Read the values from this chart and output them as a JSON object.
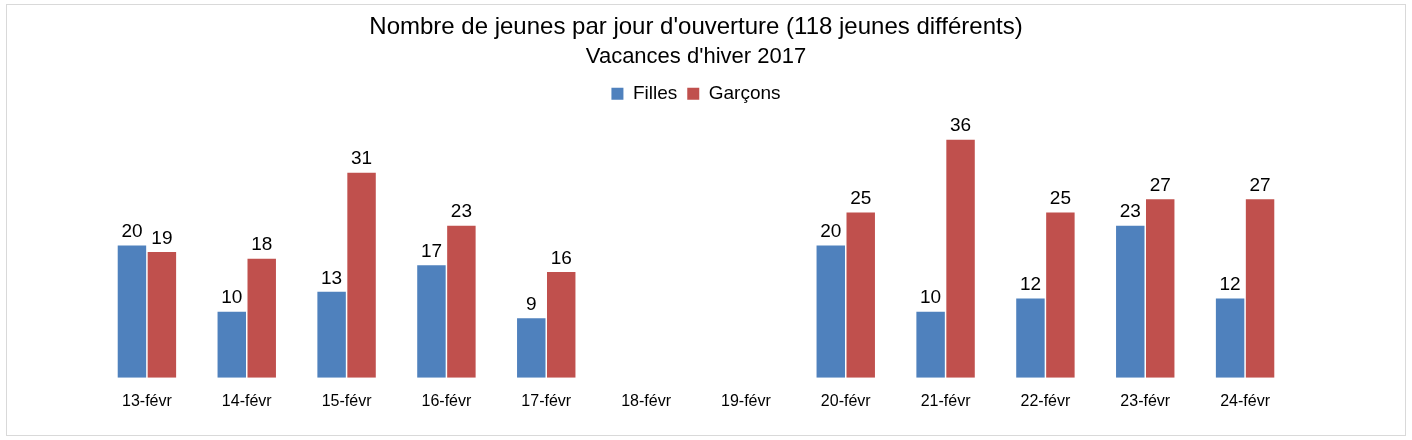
{
  "chart_data": {
    "type": "bar",
    "title": "Nombre de jeunes par jour d'ouverture (118 jeunes différents)",
    "subtitle": "Vacances d'hiver 2017",
    "categories": [
      "13-févr",
      "14-févr",
      "15-févr",
      "16-févr",
      "17-févr",
      "18-févr",
      "19-févr",
      "20-févr",
      "21-févr",
      "22-févr",
      "23-févr",
      "24-févr"
    ],
    "series": [
      {
        "name": "Filles",
        "color": "#4f81bd",
        "values": [
          20,
          10,
          13,
          17,
          9,
          null,
          null,
          20,
          10,
          12,
          23,
          12
        ]
      },
      {
        "name": "Garçons",
        "color": "#c0504d",
        "values": [
          19,
          18,
          31,
          23,
          16,
          null,
          null,
          25,
          36,
          25,
          27,
          27
        ]
      }
    ],
    "data_labels": true,
    "legend": "top",
    "grid": false
  }
}
